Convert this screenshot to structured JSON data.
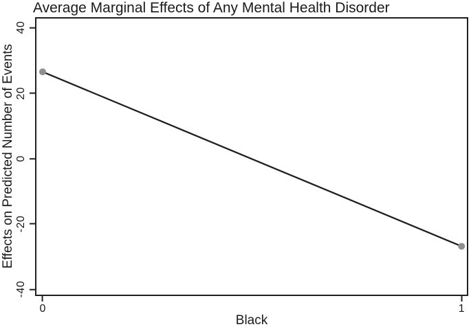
{
  "chart_data": {
    "type": "line",
    "title": "Average Marginal Effects of Any Mental Health Disorder",
    "xlabel": "Black",
    "ylabel": "Effects on Predicted Number of Events",
    "x": [
      0,
      1
    ],
    "series": [
      {
        "values": [
          26.5,
          -26.8
        ]
      }
    ],
    "xlim": [
      -0.018,
      1.016
    ],
    "ylim": [
      -42,
      43.2
    ],
    "x_ticks": [
      {
        "value": 0,
        "label": "0"
      },
      {
        "value": 1,
        "label": "1"
      }
    ],
    "y_ticks": [
      {
        "value": 40,
        "label": "40"
      },
      {
        "value": 20,
        "label": "20"
      },
      {
        "value": 0,
        "label": "0"
      },
      {
        "value": -20,
        "label": "-20"
      },
      {
        "value": -40,
        "label": "-40"
      }
    ],
    "grid": "off",
    "legend": "none",
    "marker": "circle",
    "colors": {
      "line": "#1f1f1f",
      "marker": "#8f8f8f",
      "frame": "#1f1f1f",
      "text": "#1a1a1a",
      "background": "#ffffff"
    }
  }
}
